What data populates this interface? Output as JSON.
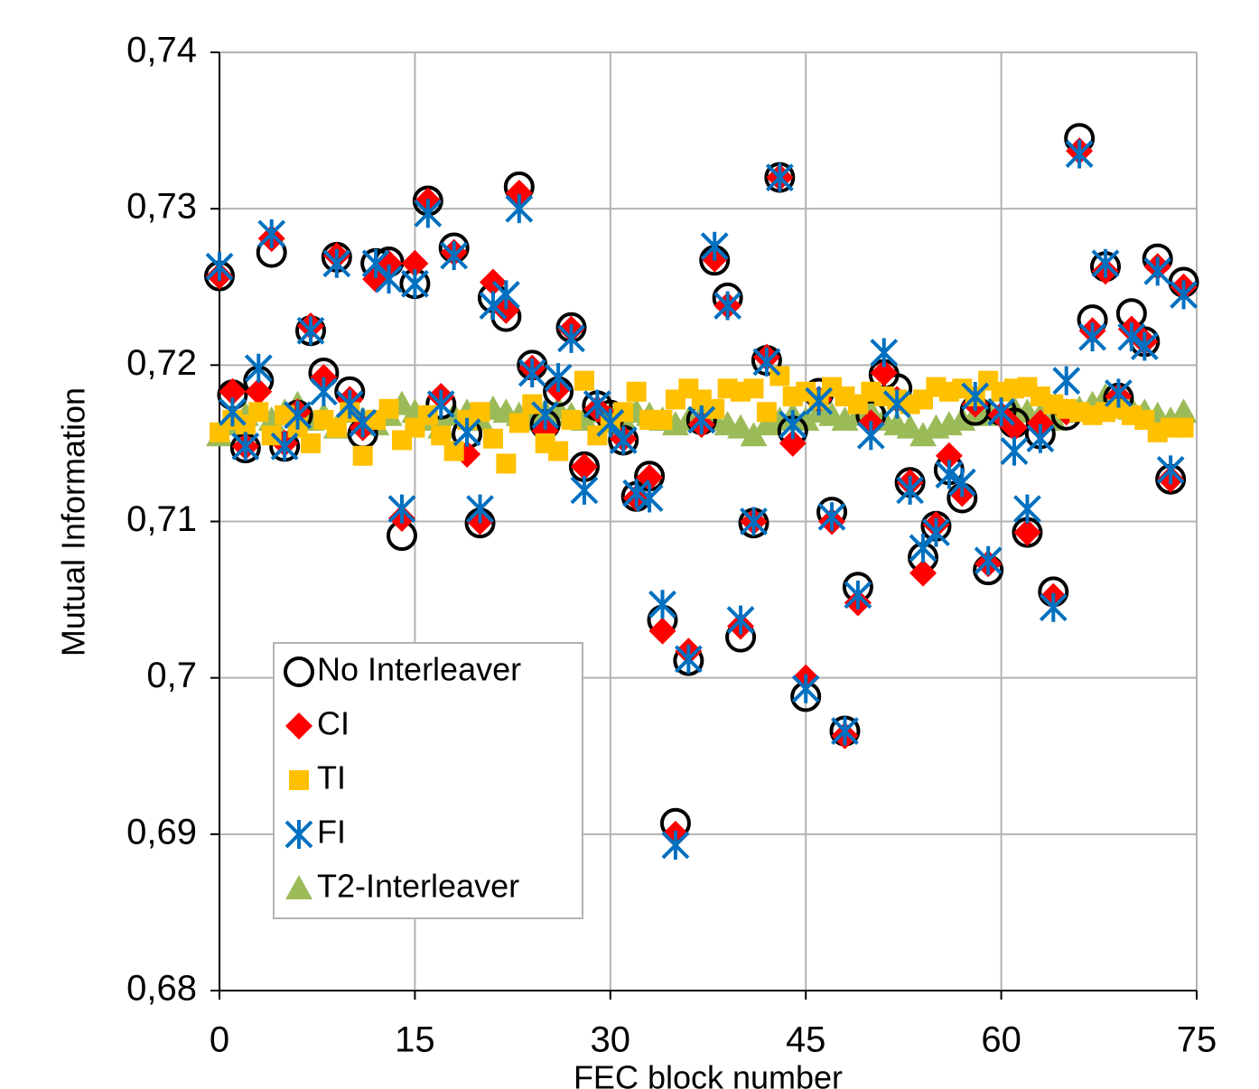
{
  "chart_data": {
    "type": "scatter",
    "x_label": "FEC block number",
    "y_label": "Mutual Information",
    "x": [
      0,
      1,
      2,
      3,
      4,
      5,
      6,
      7,
      8,
      9,
      10,
      11,
      12,
      13,
      14,
      15,
      16,
      17,
      18,
      19,
      20,
      21,
      22,
      23,
      24,
      25,
      26,
      27,
      28,
      29,
      30,
      31,
      32,
      33,
      34,
      35,
      36,
      37,
      38,
      39,
      40,
      41,
      42,
      43,
      44,
      45,
      46,
      47,
      48,
      49,
      50,
      51,
      52,
      53,
      54,
      55,
      56,
      57,
      58,
      59,
      60,
      61,
      62,
      63,
      64,
      65,
      66,
      67,
      68,
      69,
      70,
      71,
      72,
      73,
      74
    ],
    "xlim": [
      0,
      75
    ],
    "xticks": [
      0,
      15,
      30,
      45,
      60,
      75
    ],
    "ylim": [
      0.68,
      0.74
    ],
    "yticks": [
      {
        "value": 0.68,
        "label": "0,68"
      },
      {
        "value": 0.69,
        "label": "0,69"
      },
      {
        "value": 0.7,
        "label": "0,7"
      },
      {
        "value": 0.71,
        "label": "0,71"
      },
      {
        "value": 0.72,
        "label": "0,72"
      },
      {
        "value": 0.73,
        "label": "0,73"
      },
      {
        "value": 0.74,
        "label": "0,74"
      }
    ],
    "grid": true,
    "legend": "lower left",
    "series": [
      {
        "name": "No Interleaver",
        "color": "#000000",
        "marker": "circle",
        "values": [
          0.7257,
          0.7181,
          0.7147,
          0.719,
          0.7272,
          0.7148,
          0.7168,
          0.7222,
          0.7195,
          0.7269,
          0.7183,
          0.7156,
          0.7265,
          0.7266,
          0.7091,
          0.7252,
          0.7305,
          0.7175,
          0.7275,
          0.7156,
          0.7099,
          0.7243,
          0.7231,
          0.7314,
          0.72,
          0.7162,
          0.7183,
          0.7224,
          0.7135,
          0.7174,
          0.7168,
          0.7152,
          0.7116,
          0.7129,
          0.7037,
          0.6907,
          0.7011,
          0.7165,
          0.7267,
          0.7243,
          0.7026,
          0.7099,
          0.7203,
          0.732,
          0.7158,
          0.6988,
          0.7182,
          0.7106,
          0.6966,
          0.7058,
          0.7168,
          0.7194,
          0.7185,
          0.7125,
          0.7077,
          0.7097,
          0.7133,
          0.7115,
          0.7171,
          0.7069,
          0.7171,
          0.7163,
          0.7093,
          0.7156,
          0.7055,
          0.7168,
          0.7345,
          0.7229,
          0.7263,
          0.7179,
          0.7233,
          0.7215,
          0.7268,
          0.7127,
          0.7253
        ]
      },
      {
        "name": "CI",
        "color": "#ff0000",
        "marker": "diamond",
        "values": [
          0.7257,
          0.7183,
          0.7148,
          0.7183,
          0.7281,
          0.715,
          0.717,
          0.7225,
          0.7192,
          0.727,
          0.7178,
          0.716,
          0.7255,
          0.7265,
          0.7102,
          0.7265,
          0.7305,
          0.718,
          0.7272,
          0.7143,
          0.71,
          0.7253,
          0.7235,
          0.731,
          0.7198,
          0.7158,
          0.7185,
          0.7223,
          0.7135,
          0.7172,
          0.7165,
          0.7153,
          0.7115,
          0.7128,
          0.703,
          0.69,
          0.7017,
          0.7162,
          0.7268,
          0.7238,
          0.7033,
          0.71,
          0.7205,
          0.732,
          0.715,
          0.7,
          0.7178,
          0.71,
          0.6963,
          0.7048,
          0.7163,
          0.7195,
          0.7178,
          0.7125,
          0.7067,
          0.7098,
          0.7142,
          0.7118,
          0.7175,
          0.7073,
          0.7168,
          0.716,
          0.7093,
          0.7163,
          0.7052,
          0.717,
          0.7337,
          0.7222,
          0.726,
          0.718,
          0.7223,
          0.7215,
          0.7263,
          0.7127,
          0.725
        ]
      },
      {
        "name": "TI",
        "color": "#ffc000",
        "marker": "square",
        "values": [
          0.7157,
          0.7165,
          0.7162,
          0.717,
          0.7155,
          0.7168,
          0.716,
          0.715,
          0.7165,
          0.716,
          0.717,
          0.7142,
          0.7165,
          0.7172,
          0.7152,
          0.716,
          0.7168,
          0.7155,
          0.7145,
          0.7165,
          0.717,
          0.7153,
          0.7137,
          0.7163,
          0.7175,
          0.715,
          0.7145,
          0.7165,
          0.719,
          0.7155,
          0.7163,
          0.717,
          0.7183,
          0.7165,
          0.7165,
          0.7178,
          0.7185,
          0.7178,
          0.7172,
          0.7185,
          0.7183,
          0.7185,
          0.717,
          0.7193,
          0.718,
          0.7183,
          0.7178,
          0.7186,
          0.718,
          0.7175,
          0.7183,
          0.718,
          0.7178,
          0.7175,
          0.7178,
          0.7186,
          0.7183,
          0.7185,
          0.718,
          0.719,
          0.7183,
          0.7185,
          0.7186,
          0.718,
          0.7175,
          0.7172,
          0.717,
          0.7168,
          0.717,
          0.7172,
          0.7168,
          0.7165,
          0.7157,
          0.716,
          0.716
        ]
      },
      {
        "name": "FI",
        "color": "#0070c0",
        "marker": "asterisk",
        "values": [
          0.7263,
          0.717,
          0.7148,
          0.7198,
          0.7284,
          0.7148,
          0.7168,
          0.7222,
          0.7183,
          0.7265,
          0.7175,
          0.7163,
          0.7265,
          0.7255,
          0.7108,
          0.7252,
          0.7297,
          0.7175,
          0.727,
          0.7157,
          0.7108,
          0.7238,
          0.7245,
          0.73,
          0.7195,
          0.7168,
          0.7192,
          0.7217,
          0.712,
          0.7175,
          0.7163,
          0.7152,
          0.7118,
          0.7115,
          0.7047,
          0.6893,
          0.7012,
          0.7165,
          0.7276,
          0.7238,
          0.7037,
          0.71,
          0.7202,
          0.732,
          0.7162,
          0.6993,
          0.7177,
          0.7103,
          0.6966,
          0.7053,
          0.7155,
          0.7208,
          0.7175,
          0.712,
          0.7083,
          0.7093,
          0.713,
          0.7125,
          0.718,
          0.7075,
          0.717,
          0.7145,
          0.7108,
          0.7153,
          0.7045,
          0.719,
          0.7335,
          0.7218,
          0.7265,
          0.7182,
          0.7218,
          0.7212,
          0.726,
          0.7133,
          0.7245
        ]
      },
      {
        "name": "T2-Interleaver",
        "color": "#9bbb59",
        "marker": "triangle",
        "values": [
          0.7155,
          0.7162,
          0.7168,
          0.7172,
          0.7165,
          0.717,
          0.7175,
          0.7165,
          0.7168,
          0.716,
          0.717,
          0.7165,
          0.7162,
          0.7168,
          0.7175,
          0.717,
          0.7165,
          0.716,
          0.7168,
          0.717,
          0.7165,
          0.7172,
          0.717,
          0.7168,
          0.7165,
          0.717,
          0.7172,
          0.7168,
          0.7165,
          0.717,
          0.7168,
          0.7165,
          0.717,
          0.7168,
          0.7165,
          0.7162,
          0.7165,
          0.7168,
          0.7165,
          0.7162,
          0.716,
          0.7155,
          0.7162,
          0.7165,
          0.7168,
          0.7165,
          0.717,
          0.7168,
          0.7165,
          0.7168,
          0.717,
          0.7165,
          0.7162,
          0.716,
          0.7155,
          0.716,
          0.7162,
          0.7165,
          0.7168,
          0.717,
          0.7168,
          0.7172,
          0.717,
          0.7168,
          0.7165,
          0.717,
          0.7172,
          0.7175,
          0.718,
          0.7175,
          0.7172,
          0.717,
          0.7168,
          0.7165,
          0.717
        ]
      }
    ]
  }
}
